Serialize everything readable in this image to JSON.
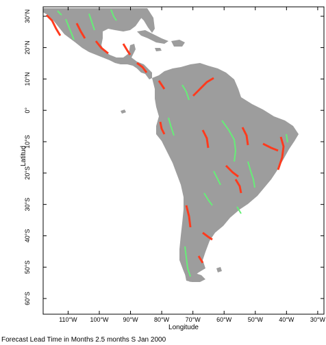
{
  "map": {
    "x_axis": {
      "title": "Longitude",
      "ticks": [
        {
          "lon": -110,
          "label": "110°W"
        },
        {
          "lon": -100,
          "label": "100°W"
        },
        {
          "lon": -90,
          "label": "90°W"
        },
        {
          "lon": -80,
          "label": "80°W"
        },
        {
          "lon": -70,
          "label": "70°W"
        },
        {
          "lon": -60,
          "label": "60°W"
        },
        {
          "lon": -50,
          "label": "50°W"
        },
        {
          "lon": -40,
          "label": "40°W"
        },
        {
          "lon": -30,
          "label": "30°W"
        }
      ]
    },
    "y_axis": {
      "title": "Latitud",
      "ticks": [
        {
          "lat": 30,
          "label": "30°N"
        },
        {
          "lat": 20,
          "label": "20°N"
        },
        {
          "lat": 10,
          "label": "10°N"
        },
        {
          "lat": 0,
          "label": "0°"
        },
        {
          "lat": -10,
          "label": "10°S"
        },
        {
          "lat": -20,
          "label": "20°S"
        },
        {
          "lat": -30,
          "label": "30°S"
        },
        {
          "lat": -40,
          "label": "40°S"
        },
        {
          "lat": -50,
          "label": "50°S"
        },
        {
          "lat": -60,
          "label": "60°S"
        }
      ]
    },
    "extent": {
      "lon_min": -118,
      "lon_max": -28,
      "lat_min": -65,
      "lat_max": 33
    },
    "caption": "Forecast Lead Time in Months 2.5 months S Jan 2000",
    "colors": {
      "land": "#9d9d9d",
      "lead_short": "#ff3b1e",
      "lead_long": "#66ee77",
      "lead_mid": "#b4a020",
      "frame": "#000000",
      "background": "#ffffff"
    }
  }
}
